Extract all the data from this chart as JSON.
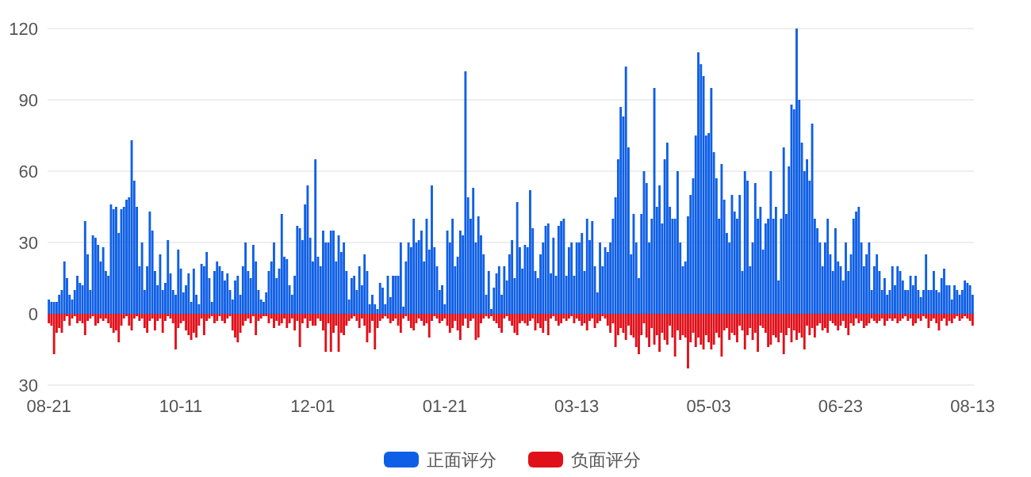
{
  "chart_data": {
    "type": "bar",
    "grid": "y",
    "legend": "bottom",
    "ylim": [
      -30,
      120
    ],
    "yticks": [
      {
        "value": -30,
        "label": "30"
      },
      0,
      30,
      60,
      90,
      120
    ],
    "categories": [
      "08-21",
      null,
      null,
      null,
      null,
      null,
      null,
      null,
      null,
      null,
      null,
      null,
      null,
      null,
      null,
      null,
      null,
      null,
      null,
      null,
      null,
      null,
      null,
      null,
      null,
      null,
      null,
      null,
      null,
      null,
      null,
      null,
      null,
      null,
      null,
      null,
      null,
      null,
      null,
      null,
      null,
      null,
      null,
      null,
      null,
      null,
      null,
      null,
      null,
      null,
      null,
      "10-11",
      null,
      null,
      null,
      null,
      null,
      null,
      null,
      null,
      null,
      null,
      null,
      null,
      null,
      null,
      null,
      null,
      null,
      null,
      null,
      null,
      null,
      null,
      null,
      null,
      null,
      null,
      null,
      null,
      null,
      null,
      null,
      null,
      null,
      null,
      null,
      null,
      null,
      null,
      null,
      null,
      null,
      null,
      null,
      null,
      null,
      null,
      null,
      null,
      null,
      null,
      "12-01",
      null,
      null,
      null,
      null,
      null,
      null,
      null,
      null,
      null,
      null,
      null,
      null,
      null,
      null,
      null,
      null,
      null,
      null,
      null,
      null,
      null,
      null,
      null,
      null,
      null,
      null,
      null,
      null,
      null,
      null,
      null,
      null,
      null,
      null,
      null,
      null,
      null,
      null,
      null,
      null,
      null,
      null,
      null,
      null,
      null,
      null,
      null,
      null,
      null,
      null,
      "01-21",
      null,
      null,
      null,
      null,
      null,
      null,
      null,
      null,
      null,
      null,
      null,
      null,
      null,
      null,
      null,
      null,
      null,
      null,
      null,
      null,
      null,
      null,
      null,
      null,
      null,
      null,
      null,
      null,
      null,
      null,
      null,
      null,
      null,
      null,
      null,
      null,
      null,
      null,
      null,
      null,
      null,
      null,
      null,
      null,
      null,
      null,
      null,
      null,
      null,
      null,
      "03-13",
      null,
      null,
      null,
      null,
      null,
      null,
      null,
      null,
      null,
      null,
      null,
      null,
      null,
      null,
      null,
      null,
      null,
      null,
      null,
      null,
      null,
      null,
      null,
      null,
      null,
      null,
      null,
      null,
      null,
      null,
      null,
      null,
      null,
      null,
      null,
      null,
      null,
      null,
      null,
      null,
      null,
      null,
      null,
      null,
      null,
      null,
      null,
      null,
      null,
      null,
      "05-03",
      null,
      null,
      null,
      null,
      null,
      null,
      null,
      null,
      null,
      null,
      null,
      null,
      null,
      null,
      null,
      null,
      null,
      null,
      null,
      null,
      null,
      null,
      null,
      null,
      null,
      null,
      null,
      null,
      null,
      null,
      null,
      null,
      null,
      null,
      null,
      null,
      null,
      null,
      null,
      null,
      null,
      null,
      null,
      null,
      null,
      null,
      null,
      null,
      null,
      null,
      "06-23",
      null,
      null,
      null,
      null,
      null,
      null,
      null,
      null,
      null,
      null,
      null,
      null,
      null,
      null,
      null,
      null,
      null,
      null,
      null,
      null,
      null,
      null,
      null,
      null,
      null,
      null,
      null,
      null,
      null,
      null,
      null,
      null,
      null,
      null,
      null,
      null,
      null,
      null,
      null,
      null,
      null,
      null,
      null,
      null,
      null,
      null,
      null,
      null,
      null,
      null,
      "08-13"
    ],
    "series": [
      {
        "name": "正面评分",
        "color": "#0f5fe6",
        "values": [
          6,
          5,
          5,
          5,
          8,
          10,
          22,
          15,
          8,
          6,
          10,
          16,
          13,
          12,
          39,
          25,
          10,
          33,
          32,
          29,
          22,
          28,
          18,
          16,
          46,
          44,
          45,
          34,
          44,
          45,
          48,
          49,
          73,
          56,
          45,
          20,
          30,
          10,
          20,
          43,
          35,
          18,
          12,
          25,
          10,
          13,
          31,
          17,
          10,
          8,
          27,
          19,
          9,
          12,
          17,
          5,
          19,
          8,
          4,
          21,
          20,
          26,
          15,
          5,
          18,
          22,
          20,
          18,
          14,
          17,
          10,
          6,
          14,
          16,
          8,
          20,
          30,
          18,
          15,
          29,
          22,
          10,
          6,
          5,
          9,
          18,
          22,
          30,
          15,
          19,
          42,
          24,
          23,
          12,
          8,
          16,
          37,
          36,
          31,
          46,
          54,
          32,
          22,
          65,
          24,
          20,
          35,
          30,
          30,
          35,
          35,
          22,
          33,
          26,
          30,
          18,
          6,
          15,
          16,
          10,
          20,
          12,
          25,
          18,
          4,
          8,
          4,
          2,
          13,
          11,
          4,
          16,
          7,
          16,
          16,
          16,
          30,
          3,
          22,
          30,
          28,
          40,
          30,
          31,
          35,
          22,
          40,
          27,
          54,
          28,
          20,
          10,
          12,
          4,
          35,
          30,
          40,
          20,
          24,
          35,
          33,
          102,
          49,
          40,
          53,
          30,
          41,
          33,
          25,
          8,
          18,
          2,
          11,
          17,
          20,
          8,
          20,
          14,
          25,
          31,
          15,
          47,
          28,
          19,
          29,
          28,
          52,
          36,
          18,
          15,
          25,
          30,
          37,
          38,
          17,
          32,
          16,
          37,
          39,
          40,
          16,
          28,
          30,
          16,
          30,
          30,
          34,
          18,
          40,
          31,
          39,
          20,
          9,
          30,
          20,
          28,
          26,
          30,
          40,
          49,
          65,
          87,
          83,
          104,
          70,
          25,
          42,
          30,
          15,
          42,
          60,
          55,
          30,
          40,
          95,
          45,
          54,
          38,
          65,
          72,
          45,
          40,
          40,
          60,
          30,
          20,
          22,
          41,
          50,
          57,
          75,
          110,
          105,
          100,
          75,
          76,
          95,
          68,
          57,
          40,
          63,
          48,
          34,
          30,
          50,
          43,
          40,
          50,
          18,
          60,
          56,
          20,
          30,
          55,
          40,
          45,
          27,
          38,
          40,
          60,
          40,
          45,
          14,
          40,
          70,
          42,
          62,
          88,
          86,
          120,
          90,
          72,
          60,
          65,
          56,
          80,
          40,
          36,
          30,
          20,
          30,
          40,
          25,
          18,
          36,
          22,
          20,
          14,
          30,
          18,
          25,
          40,
          43,
          45,
          30,
          20,
          25,
          30,
          10,
          20,
          25,
          18,
          10,
          15,
          8,
          10,
          20,
          12,
          20,
          18,
          14,
          10,
          10,
          16,
          12,
          16,
          10,
          7,
          10,
          25,
          10,
          10,
          18,
          10,
          9,
          15,
          19,
          12,
          12,
          6,
          12,
          10,
          8,
          10,
          14,
          13,
          12,
          8
        ]
      },
      {
        "name": "负面评分",
        "color": "#e0101a",
        "values": [
          -4,
          -5,
          -17,
          -8,
          -6,
          -8,
          -3,
          -1,
          -5,
          -2,
          -1,
          -4,
          -3,
          -4,
          -9,
          -3,
          -2,
          -1,
          -5,
          -4,
          -2,
          -3,
          -2,
          -4,
          -6,
          -8,
          -7,
          -12,
          -5,
          -2,
          -1,
          -5,
          -7,
          -2,
          -1,
          -3,
          -2,
          -6,
          -8,
          -3,
          -2,
          -7,
          -3,
          -2,
          -8,
          -3,
          -1,
          -2,
          -4,
          -15,
          -6,
          -4,
          -3,
          -7,
          -9,
          -11,
          -8,
          -10,
          -5,
          -2,
          -9,
          -3,
          -2,
          -1,
          -4,
          -3,
          -1,
          -3,
          -4,
          -2,
          -1,
          -7,
          -10,
          -12,
          -8,
          -5,
          -3,
          -2,
          -4,
          -1,
          -9,
          -3,
          -2,
          -1,
          -1,
          -4,
          -2,
          -6,
          -3,
          -5,
          -4,
          -2,
          -6,
          -4,
          -2,
          -7,
          -3,
          -14,
          -4,
          -2,
          -6,
          -3,
          -5,
          -5,
          -2,
          -3,
          -7,
          -16,
          -4,
          -16,
          -8,
          -5,
          -16,
          -8,
          -9,
          -5,
          -3,
          -2,
          -1,
          -3,
          -6,
          -2,
          -5,
          -12,
          -8,
          -3,
          -15,
          -6,
          -3,
          -2,
          -1,
          -2,
          -4,
          -3,
          -2,
          -5,
          -8,
          -2,
          -1,
          -3,
          -6,
          -7,
          -4,
          -2,
          -3,
          -5,
          -4,
          -10,
          -3,
          -1,
          -2,
          -4,
          -3,
          -2,
          -5,
          -8,
          -6,
          -3,
          -7,
          -11,
          -5,
          -2,
          -6,
          -3,
          -2,
          -11,
          -10,
          -4,
          -2,
          -1,
          -2,
          -1,
          -3,
          -4,
          -6,
          -8,
          -2,
          -1,
          -3,
          -5,
          -8,
          -9,
          -4,
          -3,
          -4,
          -5,
          -3,
          -2,
          -7,
          -4,
          -6,
          -8,
          -3,
          -9,
          -2,
          -1,
          -3,
          -5,
          -4,
          -2,
          -3,
          -2,
          -1,
          -4,
          -2,
          -3,
          -5,
          -4,
          -7,
          -3,
          -2,
          -6,
          -4,
          -3,
          -1,
          -2,
          -5,
          -8,
          -4,
          -14,
          -9,
          -6,
          -8,
          -11,
          -5,
          -9,
          -10,
          -14,
          -17,
          -9,
          -4,
          -10,
          -14,
          -6,
          -13,
          -9,
          -16,
          -8,
          -11,
          -13,
          -5,
          -10,
          -18,
          -7,
          -11,
          -9,
          -10,
          -23,
          -12,
          -8,
          -14,
          -10,
          -13,
          -15,
          -9,
          -12,
          -15,
          -13,
          -8,
          -10,
          -18,
          -7,
          -6,
          -11,
          -8,
          -9,
          -12,
          -5,
          -7,
          -15,
          -9,
          -6,
          -11,
          -8,
          -16,
          -5,
          -6,
          -8,
          -14,
          -13,
          -9,
          -10,
          -12,
          -8,
          -17,
          -9,
          -6,
          -12,
          -7,
          -11,
          -8,
          -10,
          -15,
          -5,
          -9,
          -6,
          -10,
          -5,
          -4,
          -7,
          -6,
          -8,
          -3,
          -4,
          -5,
          -7,
          -5,
          -3,
          -6,
          -9,
          -4,
          -5,
          -2,
          -4,
          -3,
          -6,
          -5,
          -4,
          -2,
          -3,
          -4,
          -3,
          -2,
          -5,
          -3,
          -2,
          -3,
          -2,
          -4,
          -3,
          -2,
          -1,
          -3,
          -2,
          -5,
          -4,
          -2,
          -3,
          -1,
          -2,
          -6,
          -3,
          -2,
          -4,
          -7,
          -3,
          -2,
          -5,
          -3,
          -4,
          -2,
          -1,
          -3,
          -2,
          -1,
          -2,
          -3,
          -5
        ]
      }
    ]
  }
}
